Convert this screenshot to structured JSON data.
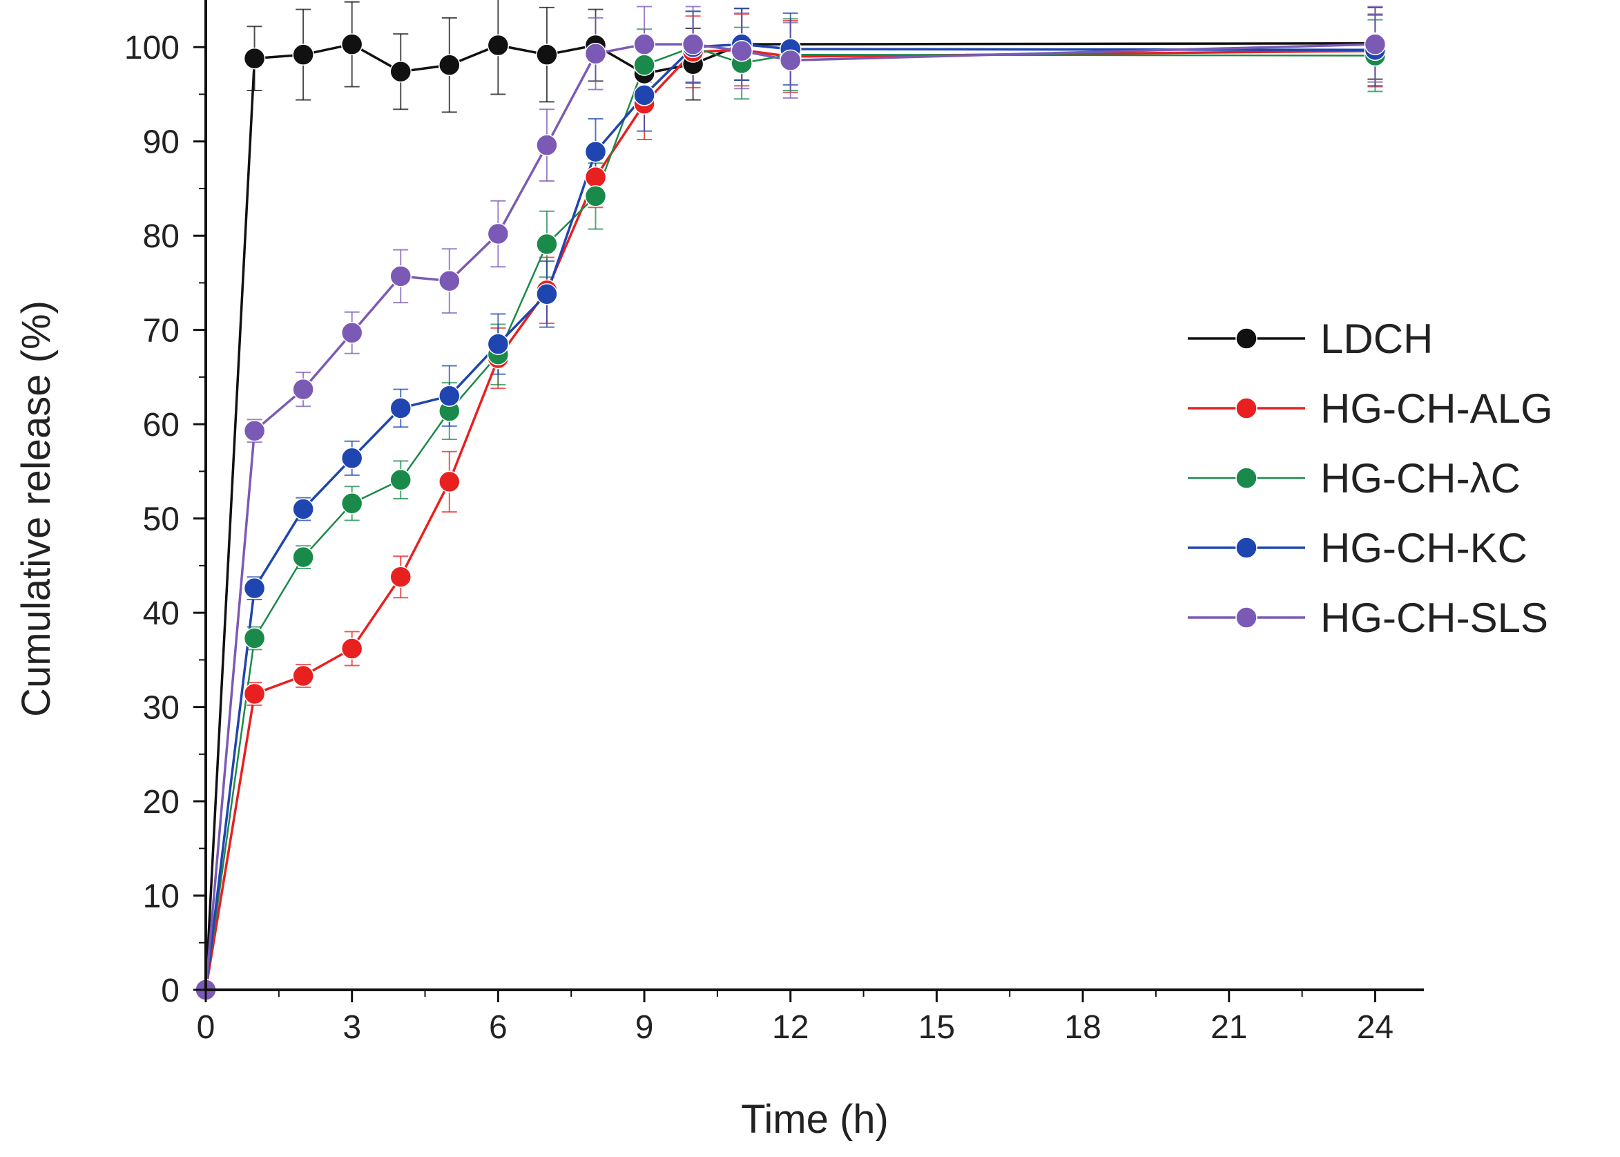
{
  "chart_data": {
    "type": "line",
    "title": "",
    "xlabel": "Time (h)",
    "ylabel": "Cumulative release (%)",
    "xlim": [
      0,
      25
    ],
    "ylim": [
      0,
      105
    ],
    "xticks": [
      0,
      3,
      6,
      9,
      12,
      15,
      18,
      21,
      24
    ],
    "yticks": [
      0,
      10,
      20,
      30,
      40,
      50,
      60,
      70,
      80,
      90,
      100
    ],
    "grid": false,
    "legend_position": "center-right",
    "series": [
      {
        "name": "LDCH",
        "color": "#111111",
        "x": [
          0,
          1,
          2,
          3,
          4,
          5,
          6,
          7,
          8,
          9,
          10,
          11,
          24
        ],
        "y": [
          0,
          98.8,
          99.2,
          100.3,
          97.4,
          98.1,
          100.2,
          99.2,
          100.2,
          97.2,
          98.2,
          100.3,
          100.4
        ],
        "err": [
          0,
          3.4,
          4.8,
          4.5,
          4.0,
          5.0,
          5.2,
          5.0,
          3.8,
          3.8,
          3.8,
          3.8,
          3.8
        ]
      },
      {
        "name": "HG-CH-ALG",
        "color": "#e8201f",
        "x": [
          0,
          1,
          2,
          3,
          4,
          5,
          6,
          7,
          8,
          9,
          10,
          11,
          12,
          24
        ],
        "y": [
          0,
          31.4,
          33.3,
          36.2,
          43.8,
          53.9,
          67.0,
          74.2,
          86.2,
          94.0,
          99.5,
          99.7,
          99.0,
          99.6
        ],
        "err": [
          0,
          1.2,
          1.2,
          1.8,
          2.2,
          3.2,
          3.2,
          3.5,
          3.2,
          3.8,
          3.8,
          3.8,
          3.8,
          3.8
        ]
      },
      {
        "name": "HG-CH-λC",
        "color": "#1a8a4a",
        "x": [
          0,
          1,
          2,
          3,
          4,
          5,
          6,
          7,
          8,
          9,
          10,
          11,
          12,
          24
        ],
        "y": [
          0,
          37.3,
          45.9,
          51.6,
          54.1,
          61.4,
          67.4,
          79.1,
          84.2,
          98.1,
          100.0,
          98.3,
          99.2,
          99.1
        ],
        "err": [
          0,
          1.2,
          1.2,
          1.8,
          2.0,
          3.0,
          3.2,
          3.5,
          3.5,
          3.8,
          3.8,
          3.8,
          3.8,
          3.8
        ]
      },
      {
        "name": "HG-CH-KC",
        "color": "#1f45b0",
        "x": [
          0,
          1,
          2,
          3,
          4,
          5,
          6,
          7,
          8,
          9,
          10,
          11,
          12,
          24
        ],
        "y": [
          0,
          42.6,
          51.0,
          56.4,
          61.7,
          63.0,
          68.5,
          73.8,
          88.9,
          94.9,
          100.0,
          100.3,
          99.8,
          99.7
        ],
        "err": [
          0,
          1.2,
          1.2,
          1.8,
          2.0,
          3.2,
          3.2,
          3.5,
          3.5,
          3.8,
          3.8,
          3.8,
          3.8,
          3.8
        ]
      },
      {
        "name": "HG-CH-SLS",
        "color": "#7b5ab6",
        "x": [
          0,
          1,
          2,
          3,
          4,
          5,
          6,
          7,
          8,
          9,
          10,
          11,
          12,
          24
        ],
        "y": [
          0,
          59.3,
          63.7,
          69.7,
          75.7,
          75.2,
          80.2,
          89.6,
          99.3,
          100.3,
          100.3,
          99.6,
          98.6,
          100.3
        ],
        "err": [
          0,
          1.2,
          1.8,
          2.2,
          2.8,
          3.4,
          3.5,
          3.8,
          3.8,
          4.0,
          4.0,
          4.0,
          4.0,
          4.0
        ]
      }
    ]
  }
}
